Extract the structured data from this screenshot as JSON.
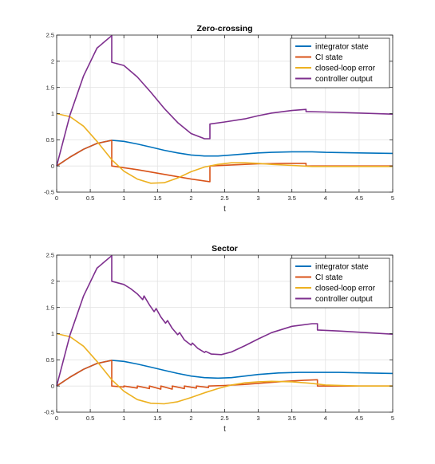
{
  "chart_data": [
    {
      "type": "line",
      "title": "Zero-crossing",
      "xlabel": "t",
      "ylabel": "",
      "xlim": [
        0,
        5
      ],
      "ylim": [
        -0.5,
        2.5
      ],
      "xticks": [
        "0",
        "0.5",
        "1",
        "1.5",
        "2",
        "2.5",
        "3",
        "3.5",
        "4",
        "4.5",
        "5"
      ],
      "yticks": [
        "-0.5",
        "0",
        "0.5",
        "1",
        "1.5",
        "2",
        "2.5"
      ],
      "grid": true,
      "legend_position": "top-right",
      "series": [
        {
          "name": "integrator state",
          "color": "#0072BD",
          "x": [
            0,
            0.2,
            0.4,
            0.6,
            0.82,
            1.0,
            1.2,
            1.4,
            1.6,
            1.8,
            2.0,
            2.2,
            2.4,
            2.6,
            2.8,
            3.0,
            3.2,
            3.5,
            3.8,
            4.0,
            4.5,
            5.0
          ],
          "y": [
            0,
            0.17,
            0.32,
            0.43,
            0.49,
            0.47,
            0.42,
            0.36,
            0.3,
            0.25,
            0.21,
            0.19,
            0.19,
            0.21,
            0.23,
            0.25,
            0.26,
            0.27,
            0.27,
            0.26,
            0.25,
            0.24
          ]
        },
        {
          "name": "CI state",
          "color": "#D95319",
          "x": [
            0,
            0.2,
            0.4,
            0.6,
            0.82,
            0.82,
            1.2,
            1.6,
            2.0,
            2.28,
            2.28,
            2.6,
            3.0,
            3.4,
            3.71,
            3.71,
            4.0,
            4.5,
            5.0
          ],
          "y": [
            0,
            0.17,
            0.32,
            0.43,
            0.49,
            0.0,
            -0.07,
            -0.16,
            -0.25,
            -0.3,
            0.0,
            0.02,
            0.04,
            0.05,
            0.05,
            0.0,
            0.0,
            0.0,
            0.0
          ]
        },
        {
          "name": "closed-loop error",
          "color": "#EDB120",
          "x": [
            0,
            0.2,
            0.4,
            0.6,
            0.82,
            1.0,
            1.2,
            1.4,
            1.6,
            1.8,
            2.0,
            2.2,
            2.4,
            2.6,
            2.8,
            3.0,
            3.2,
            3.5,
            3.8,
            4.0,
            4.5,
            5.0
          ],
          "y": [
            1.0,
            0.94,
            0.76,
            0.47,
            0.12,
            -0.1,
            -0.25,
            -0.33,
            -0.32,
            -0.23,
            -0.11,
            -0.02,
            0.03,
            0.06,
            0.06,
            0.05,
            0.03,
            0.01,
            -0.01,
            -0.01,
            -0.01,
            -0.01
          ]
        },
        {
          "name": "controller output",
          "color": "#7E2F8E",
          "x": [
            0,
            0.2,
            0.4,
            0.6,
            0.82,
            0.82,
            1.0,
            1.2,
            1.4,
            1.6,
            1.8,
            2.0,
            2.2,
            2.28,
            2.28,
            2.5,
            2.8,
            3.0,
            3.2,
            3.5,
            3.71,
            3.71,
            4.0,
            4.5,
            5.0
          ],
          "y": [
            0,
            0.98,
            1.72,
            2.25,
            2.49,
            1.98,
            1.92,
            1.7,
            1.41,
            1.1,
            0.83,
            0.62,
            0.52,
            0.52,
            0.8,
            0.84,
            0.9,
            0.96,
            1.01,
            1.06,
            1.08,
            1.04,
            1.03,
            1.01,
            0.99
          ]
        }
      ]
    },
    {
      "type": "line",
      "title": "Sector",
      "xlabel": "t",
      "ylabel": "",
      "xlim": [
        0,
        5
      ],
      "ylim": [
        -0.5,
        2.5
      ],
      "xticks": [
        "0",
        "0.5",
        "1",
        "1.5",
        "2",
        "2.5",
        "3",
        "3.5",
        "4",
        "4.5",
        "5"
      ],
      "yticks": [
        "-0.5",
        "0",
        "0.5",
        "1",
        "1.5",
        "2",
        "2.5"
      ],
      "grid": true,
      "legend_position": "top-right",
      "series": [
        {
          "name": "integrator state",
          "color": "#0072BD",
          "x": [
            0,
            0.2,
            0.4,
            0.6,
            0.82,
            1.0,
            1.2,
            1.4,
            1.6,
            1.8,
            2.0,
            2.2,
            2.4,
            2.6,
            2.8,
            3.0,
            3.3,
            3.6,
            3.9,
            4.2,
            4.6,
            5.0
          ],
          "y": [
            0,
            0.17,
            0.32,
            0.43,
            0.49,
            0.47,
            0.42,
            0.36,
            0.3,
            0.24,
            0.19,
            0.16,
            0.15,
            0.16,
            0.19,
            0.22,
            0.25,
            0.26,
            0.26,
            0.26,
            0.25,
            0.24
          ]
        },
        {
          "name": "CI state",
          "color": "#D95319",
          "x": [
            0,
            0.2,
            0.4,
            0.6,
            0.82,
            0.82,
            1.0,
            1.0,
            1.2,
            1.2,
            1.38,
            1.38,
            1.55,
            1.55,
            1.72,
            1.72,
            1.9,
            1.9,
            2.08,
            2.08,
            2.26,
            2.26,
            2.5,
            2.8,
            3.1,
            3.4,
            3.7,
            3.88,
            3.88,
            4.2,
            4.6,
            5.0
          ],
          "y": [
            0,
            0.17,
            0.32,
            0.43,
            0.49,
            0.0,
            -0.02,
            0.0,
            -0.04,
            0.0,
            -0.05,
            0.0,
            -0.06,
            0.0,
            -0.06,
            0.0,
            -0.05,
            0.0,
            -0.04,
            0.0,
            -0.03,
            0.0,
            0.01,
            0.03,
            0.06,
            0.09,
            0.11,
            0.12,
            0.0,
            0.0,
            0.0,
            0.0
          ]
        },
        {
          "name": "closed-loop error",
          "color": "#EDB120",
          "x": [
            0,
            0.2,
            0.4,
            0.6,
            0.82,
            1.0,
            1.2,
            1.4,
            1.6,
            1.8,
            2.0,
            2.2,
            2.4,
            2.6,
            2.8,
            3.0,
            3.2,
            3.5,
            3.8,
            4.0,
            4.5,
            5.0
          ],
          "y": [
            1.0,
            0.94,
            0.76,
            0.47,
            0.12,
            -0.1,
            -0.26,
            -0.33,
            -0.34,
            -0.3,
            -0.22,
            -0.13,
            -0.05,
            0.02,
            0.06,
            0.08,
            0.09,
            0.08,
            0.05,
            0.02,
            0.0,
            0.0
          ]
        },
        {
          "name": "controller output",
          "color": "#7E2F8E",
          "x": [
            0,
            0.2,
            0.4,
            0.6,
            0.82,
            0.82,
            1.0,
            1.1,
            1.2,
            1.28,
            1.3,
            1.38,
            1.45,
            1.48,
            1.55,
            1.62,
            1.65,
            1.72,
            1.8,
            1.83,
            1.9,
            2.0,
            2.02,
            2.1,
            2.2,
            2.22,
            2.3,
            2.45,
            2.6,
            2.8,
            3.0,
            3.2,
            3.5,
            3.8,
            3.88,
            3.88,
            4.2,
            4.6,
            5.0
          ],
          "y": [
            0,
            0.98,
            1.72,
            2.25,
            2.49,
            2.0,
            1.94,
            1.86,
            1.76,
            1.65,
            1.72,
            1.55,
            1.42,
            1.48,
            1.32,
            1.2,
            1.25,
            1.1,
            0.98,
            1.02,
            0.88,
            0.78,
            0.82,
            0.72,
            0.64,
            0.66,
            0.61,
            0.6,
            0.65,
            0.77,
            0.9,
            1.02,
            1.14,
            1.19,
            1.19,
            1.07,
            1.05,
            1.02,
            0.99
          ]
        }
      ]
    }
  ]
}
